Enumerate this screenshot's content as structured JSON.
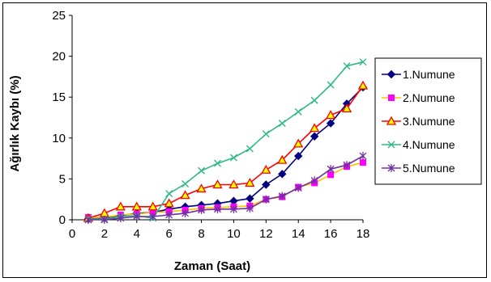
{
  "chart_data": {
    "type": "line",
    "xlabel": "Zaman (Saat)",
    "ylabel": "Ağırlık Kaybı (%)",
    "xlim": [
      0,
      18
    ],
    "ylim": [
      0,
      25
    ],
    "x_ticks": [
      0,
      2,
      4,
      6,
      8,
      10,
      12,
      14,
      16,
      18
    ],
    "y_ticks": [
      0,
      5,
      10,
      15,
      20,
      25
    ],
    "grid": false,
    "legend_position": "right",
    "x": [
      1,
      2,
      3,
      4,
      5,
      6,
      7,
      8,
      9,
      10,
      11,
      12,
      13,
      14,
      15,
      16,
      17,
      18
    ],
    "series": [
      {
        "name": "1.Numune",
        "color": "#000080",
        "marker": "diamond",
        "values": [
          0.1,
          0.2,
          0.5,
          0.8,
          0.9,
          1.3,
          1.6,
          1.8,
          2.0,
          2.3,
          2.6,
          4.3,
          5.6,
          7.8,
          10.2,
          11.8,
          14.2,
          16.2
        ]
      },
      {
        "name": "2.Numune",
        "color": "#FFC000",
        "marker": "square",
        "marker_color": "#FF00FF",
        "values": [
          0.3,
          0.3,
          0.6,
          0.7,
          0.9,
          1.0,
          1.2,
          1.4,
          1.5,
          1.6,
          1.7,
          2.5,
          2.8,
          4.0,
          4.5,
          5.5,
          6.5,
          7.0
        ]
      },
      {
        "name": "3.Numune",
        "color": "#FF0000",
        "marker": "triangle",
        "marker_fill": "#FFFF00",
        "values": [
          0.2,
          0.8,
          1.6,
          1.6,
          1.6,
          2.0,
          3.0,
          3.8,
          4.3,
          4.3,
          4.5,
          6.1,
          7.3,
          9.3,
          11.2,
          12.8,
          13.6,
          16.4
        ]
      },
      {
        "name": "4.Numune",
        "color": "#2EB88A",
        "marker": "x",
        "values": [
          0.1,
          0.1,
          0.4,
          0.5,
          0.2,
          3.2,
          4.4,
          6.0,
          6.9,
          7.6,
          8.7,
          10.5,
          11.8,
          13.2,
          14.6,
          16.5,
          18.8,
          19.3
        ]
      },
      {
        "name": "5.Numune",
        "color": "#7030A0",
        "marker": "star",
        "values": [
          0.0,
          0.0,
          0.2,
          0.4,
          0.4,
          0.6,
          0.8,
          1.2,
          1.3,
          1.3,
          1.4,
          2.5,
          2.9,
          3.9,
          4.8,
          6.2,
          6.7,
          7.8
        ]
      }
    ]
  }
}
